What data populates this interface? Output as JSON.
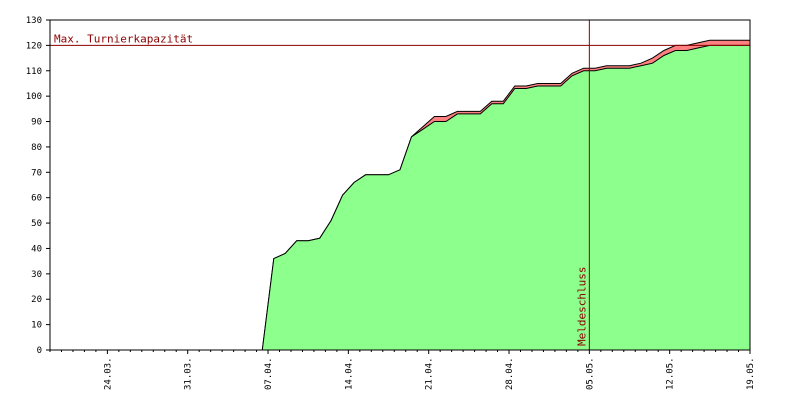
{
  "chart_data": {
    "type": "area",
    "title": "",
    "xlabel": "",
    "ylabel": "",
    "ylim": [
      0,
      130
    ],
    "y_ticks": [
      0,
      10,
      20,
      30,
      40,
      50,
      60,
      70,
      80,
      90,
      100,
      110,
      120,
      130
    ],
    "x_tick_labels": [
      "24.03.",
      "31.03.",
      "07.04.",
      "14.04.",
      "21.04.",
      "28.04.",
      "05.05.",
      "12.05.",
      "19.05."
    ],
    "x_tick_days": [
      7,
      14,
      21,
      28,
      35,
      42,
      49,
      56,
      63
    ],
    "xlim_days": [
      2,
      63
    ],
    "reference_line": {
      "label": "Max. Turnierkapazität",
      "value": 120,
      "color": "#8b0000"
    },
    "vertical_marker": {
      "label": "Meldeschluss",
      "day": 49,
      "color": "#8b0000"
    },
    "series": [
      {
        "color": "#8cff8c",
        "points": [
          [
            2,
            0
          ],
          [
            20.5,
            0
          ],
          [
            21.5,
            36
          ],
          [
            22.5,
            38
          ],
          [
            23.5,
            43
          ],
          [
            24.5,
            43
          ],
          [
            25.5,
            44
          ],
          [
            26.5,
            51
          ],
          [
            27.5,
            61
          ],
          [
            28.5,
            66
          ],
          [
            29.5,
            69
          ],
          [
            30.5,
            69
          ],
          [
            31.5,
            69
          ],
          [
            32.5,
            71
          ],
          [
            33.5,
            84
          ],
          [
            34.5,
            87
          ],
          [
            35.5,
            90
          ],
          [
            36.5,
            90
          ],
          [
            37.5,
            93
          ],
          [
            38.5,
            93
          ],
          [
            39.5,
            93
          ],
          [
            40.5,
            97
          ],
          [
            41.5,
            97
          ],
          [
            42.5,
            103
          ],
          [
            43.5,
            103
          ],
          [
            44.5,
            104
          ],
          [
            45.5,
            104
          ],
          [
            46.5,
            104
          ],
          [
            47.5,
            108
          ],
          [
            48.5,
            110
          ],
          [
            49.5,
            110
          ],
          [
            50.5,
            111
          ],
          [
            51.5,
            111
          ],
          [
            52.5,
            111
          ],
          [
            53.5,
            112
          ],
          [
            54.5,
            113
          ],
          [
            55.5,
            116
          ],
          [
            56.5,
            118
          ],
          [
            57.5,
            118
          ],
          [
            58.5,
            119
          ],
          [
            59.5,
            120
          ],
          [
            63,
            120
          ]
        ]
      },
      {
        "color": "#ff8080",
        "points": [
          [
            2,
            0
          ],
          [
            20.5,
            0
          ],
          [
            21.5,
            36
          ],
          [
            22.5,
            38
          ],
          [
            23.5,
            43
          ],
          [
            24.5,
            43
          ],
          [
            25.5,
            44
          ],
          [
            26.5,
            51
          ],
          [
            27.5,
            61
          ],
          [
            28.5,
            66
          ],
          [
            29.5,
            69
          ],
          [
            30.5,
            69
          ],
          [
            31.5,
            69
          ],
          [
            32.5,
            71
          ],
          [
            33.5,
            84
          ],
          [
            34.5,
            88
          ],
          [
            35.5,
            92
          ],
          [
            36.5,
            92
          ],
          [
            37.5,
            94
          ],
          [
            38.5,
            94
          ],
          [
            39.5,
            94
          ],
          [
            40.5,
            98
          ],
          [
            41.5,
            98
          ],
          [
            42.5,
            104
          ],
          [
            43.5,
            104
          ],
          [
            44.5,
            105
          ],
          [
            45.5,
            105
          ],
          [
            46.5,
            105
          ],
          [
            47.5,
            109
          ],
          [
            48.5,
            111
          ],
          [
            49.5,
            111
          ],
          [
            50.5,
            112
          ],
          [
            51.5,
            112
          ],
          [
            52.5,
            112
          ],
          [
            53.5,
            113
          ],
          [
            54.5,
            115
          ],
          [
            55.5,
            118
          ],
          [
            56.5,
            120
          ],
          [
            57.5,
            120
          ],
          [
            58.5,
            121
          ],
          [
            59.5,
            122
          ],
          [
            63,
            122
          ]
        ]
      }
    ]
  }
}
